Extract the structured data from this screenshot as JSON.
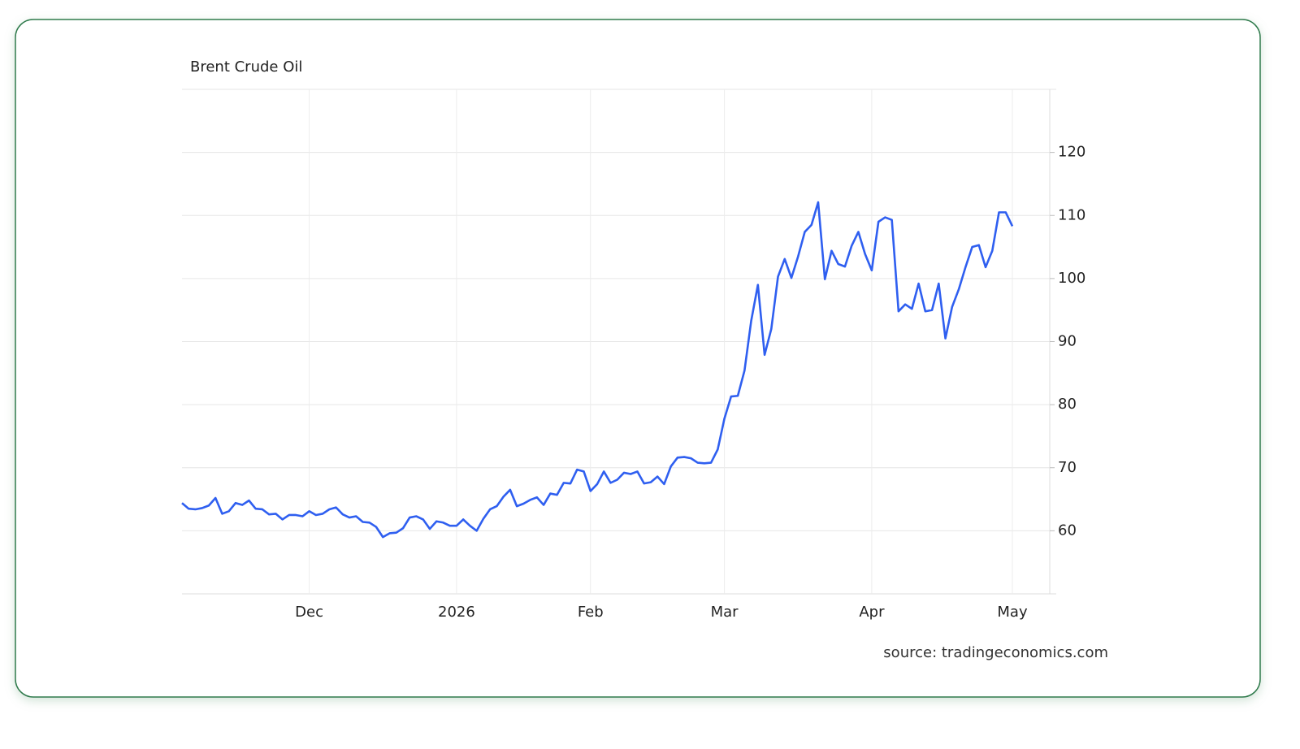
{
  "chart_data": {
    "type": "line",
    "title": "Brent Crude Oil",
    "source": "source: tradingeconomics.com",
    "categories": [
      null,
      null,
      null,
      null,
      null,
      null,
      null,
      null,
      null,
      null,
      null,
      null,
      null,
      null,
      null,
      null,
      null,
      null,
      null,
      "Dec",
      null,
      null,
      null,
      null,
      null,
      null,
      null,
      null,
      null,
      null,
      null,
      null,
      null,
      null,
      null,
      null,
      null,
      null,
      null,
      null,
      null,
      "2026",
      null,
      null,
      null,
      null,
      null,
      null,
      null,
      null,
      null,
      null,
      null,
      null,
      null,
      null,
      null,
      null,
      null,
      null,
      null,
      "Feb",
      null,
      null,
      null,
      null,
      null,
      null,
      null,
      null,
      null,
      null,
      null,
      null,
      null,
      null,
      null,
      null,
      null,
      null,
      null,
      "Mar",
      null,
      null,
      null,
      null,
      null,
      null,
      null,
      null,
      null,
      null,
      null,
      null,
      null,
      null,
      null,
      null,
      null,
      null,
      null,
      null,
      null,
      "Apr",
      null,
      null,
      null,
      null,
      null,
      null,
      null,
      null,
      null,
      null,
      null,
      null,
      null,
      null,
      null,
      null,
      null,
      null,
      null,
      null,
      "May"
    ],
    "values": [
      64.4,
      63.5,
      63.4,
      63.6,
      64.0,
      65.2,
      62.7,
      63.1,
      64.4,
      64.1,
      64.8,
      63.5,
      63.4,
      62.6,
      62.7,
      61.8,
      62.5,
      62.5,
      62.3,
      63.1,
      62.5,
      62.7,
      63.4,
      63.7,
      62.6,
      62.1,
      62.3,
      61.4,
      61.3,
      60.6,
      59.0,
      59.6,
      59.7,
      60.4,
      62.1,
      62.3,
      61.8,
      60.3,
      61.5,
      61.3,
      60.8,
      60.8,
      61.8,
      60.8,
      60.0,
      61.9,
      63.4,
      63.9,
      65.4,
      66.5,
      63.9,
      64.3,
      64.9,
      65.3,
      64.1,
      65.9,
      65.7,
      67.6,
      67.5,
      69.7,
      69.4,
      66.3,
      67.4,
      69.4,
      67.6,
      68.1,
      69.2,
      69.0,
      69.4,
      67.5,
      67.7,
      68.6,
      67.4,
      70.2,
      71.6,
      71.7,
      71.5,
      70.8,
      70.7,
      70.8,
      72.9,
      77.8,
      81.3,
      81.4,
      85.4,
      93.3,
      99.0,
      87.9,
      92.0,
      100.3,
      103.1,
      100.1,
      103.5,
      107.4,
      108.5,
      112.1,
      99.9,
      104.4,
      102.3,
      101.9,
      105.2,
      107.4,
      103.9,
      101.3,
      109.0,
      109.7,
      109.3,
      94.8,
      95.9,
      95.2,
      99.2,
      94.8,
      95.0,
      99.2,
      90.5,
      95.5,
      98.3,
      101.8,
      105.0,
      105.3,
      101.8,
      104.4,
      110.5,
      110.5,
      108.3
    ],
    "color": "#2f5ff0",
    "ylim": [
      50,
      130
    ],
    "yticks": [
      60,
      70,
      80,
      90,
      100,
      110,
      120
    ],
    "grid": true
  }
}
